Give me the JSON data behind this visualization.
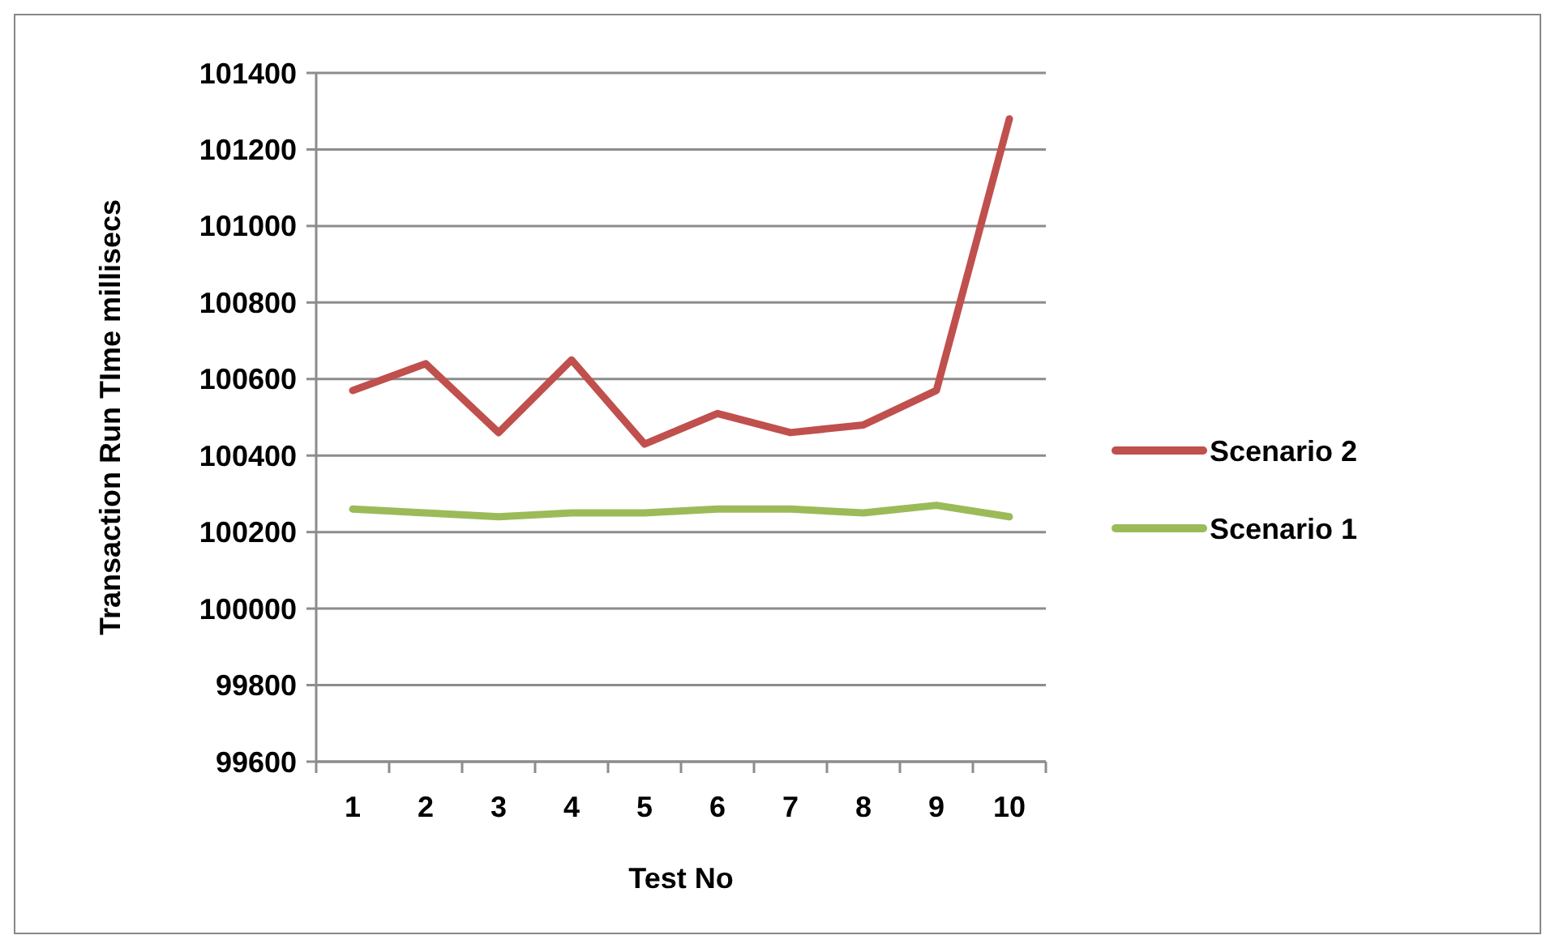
{
  "chart_data": {
    "type": "line",
    "xlabel": "Test No",
    "ylabel": "Transaction Run TIme millisecs",
    "categories": [
      "1",
      "2",
      "3",
      "4",
      "5",
      "6",
      "7",
      "8",
      "9",
      "10"
    ],
    "series": [
      {
        "name": "Scenario 2",
        "color": "#c0504d",
        "values": [
          100570,
          100640,
          100460,
          100650,
          100430,
          100510,
          100460,
          100480,
          100570,
          101280
        ]
      },
      {
        "name": "Scenario 1",
        "color": "#9bbb59",
        "values": [
          100260,
          100250,
          100240,
          100250,
          100250,
          100260,
          100260,
          100250,
          100270,
          100240
        ]
      }
    ],
    "ylim": [
      99600,
      101400
    ],
    "yticks": [
      99600,
      99800,
      100000,
      100200,
      100400,
      100600,
      100800,
      101000,
      101200,
      101400
    ],
    "grid": "y",
    "legend": "right",
    "marker": "none",
    "line_style": "solid"
  }
}
